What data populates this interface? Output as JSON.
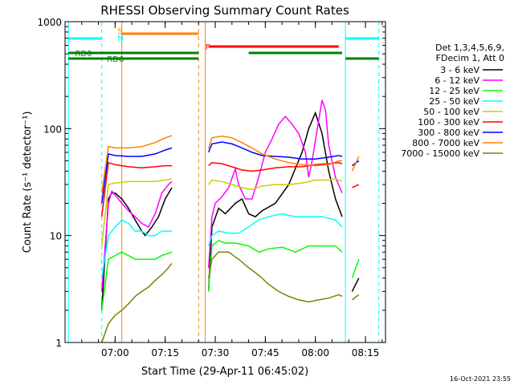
{
  "chart_data": {
    "type": "line",
    "title": "RHESSI Observing Summary Count Rates",
    "xlabel": "Start Time (29-Apr-11 06:45:02)",
    "ylabel": "Count Rate (s⁻¹ detector⁻¹)",
    "y_scale": "log",
    "ylim": [
      1,
      1000
    ],
    "xlim": [
      "06:45",
      "08:21"
    ],
    "x_ticks": [
      "07:00",
      "07:15",
      "07:30",
      "07:45",
      "08:00",
      "08:15"
    ],
    "y_ticks": [
      "1",
      "10",
      "100",
      "1000"
    ],
    "footer_date": "16-Oct-2021 23:55",
    "legend_header": [
      "Det 1,3,4,5,6,9,",
      "FDecim 1, Att 0"
    ],
    "flag_labels": {
      "saa": "S",
      "night": "N",
      "flare": "F",
      "rd0": "RD0",
      "rd6": "RD6"
    },
    "series": [
      {
        "name": "3 - 6 keV",
        "color": "#000000",
        "points": [
          [
            "06:55",
            null
          ],
          [
            "06:56",
            2
          ],
          [
            "06:58",
            22
          ],
          [
            "06:59",
            25
          ],
          [
            "07:00",
            25
          ],
          [
            "07:02",
            22
          ],
          [
            "07:04",
            18
          ],
          [
            "07:06",
            14
          ],
          [
            "07:08",
            11
          ],
          [
            "07:09",
            10
          ],
          [
            "07:11",
            12
          ],
          [
            "07:13",
            15
          ],
          [
            "07:15",
            22
          ],
          [
            "07:17",
            28
          ],
          [
            "07:18",
            null
          ],
          [
            "07:28",
            3
          ],
          [
            "07:29",
            12
          ],
          [
            "07:31",
            18
          ],
          [
            "07:33",
            16
          ],
          [
            "07:36",
            20
          ],
          [
            "07:38",
            22
          ],
          [
            "07:40",
            16
          ],
          [
            "07:42",
            15
          ],
          [
            "07:44",
            17
          ],
          [
            "07:48",
            20
          ],
          [
            "07:52",
            30
          ],
          [
            "07:56",
            60
          ],
          [
            "07:58",
            100
          ],
          [
            "08:00",
            140
          ],
          [
            "08:02",
            90
          ],
          [
            "08:04",
            40
          ],
          [
            "08:06",
            22
          ],
          [
            "08:08",
            15
          ],
          [
            "08:10",
            null
          ],
          [
            "08:11",
            3
          ],
          [
            "08:13",
            4
          ]
        ]
      },
      {
        "name": "6 - 12 keV",
        "color": "#ff00ff",
        "points": [
          [
            "06:55",
            null
          ],
          [
            "06:56",
            3
          ],
          [
            "06:58",
            20
          ],
          [
            "06:59",
            26
          ],
          [
            "07:00",
            24
          ],
          [
            "07:02",
            20
          ],
          [
            "07:04",
            17
          ],
          [
            "07:06",
            15
          ],
          [
            "07:08",
            13
          ],
          [
            "07:10",
            12
          ],
          [
            "07:12",
            16
          ],
          [
            "07:14",
            25
          ],
          [
            "07:16",
            30
          ],
          [
            "07:17",
            32
          ],
          [
            "07:18",
            null
          ],
          [
            "07:28",
            5
          ],
          [
            "07:29",
            15
          ],
          [
            "07:30",
            20
          ],
          [
            "07:32",
            23
          ],
          [
            "07:34",
            28
          ],
          [
            "07:36",
            42
          ],
          [
            "07:37",
            30
          ],
          [
            "07:39",
            22
          ],
          [
            "07:41",
            22
          ],
          [
            "07:43",
            35
          ],
          [
            "07:45",
            60
          ],
          [
            "07:47",
            80
          ],
          [
            "07:49",
            110
          ],
          [
            "07:51",
            130
          ],
          [
            "07:53",
            110
          ],
          [
            "07:55",
            90
          ],
          [
            "07:57",
            60
          ],
          [
            "07:58",
            35
          ],
          [
            "07:59",
            50
          ],
          [
            "08:01",
            120
          ],
          [
            "08:02",
            185
          ],
          [
            "08:03",
            150
          ],
          [
            "08:04",
            70
          ],
          [
            "08:06",
            35
          ],
          [
            "08:08",
            25
          ],
          [
            "08:10",
            null
          ]
        ]
      },
      {
        "name": "12 - 25 keV",
        "color": "#00ff00",
        "points": [
          [
            "06:55",
            null
          ],
          [
            "06:56",
            2
          ],
          [
            "06:58",
            6
          ],
          [
            "07:00",
            6.5
          ],
          [
            "07:02",
            7
          ],
          [
            "07:04",
            6.5
          ],
          [
            "07:06",
            6
          ],
          [
            "07:08",
            6
          ],
          [
            "07:10",
            6
          ],
          [
            "07:12",
            6
          ],
          [
            "07:14",
            6.5
          ],
          [
            "07:17",
            7
          ],
          [
            "07:18",
            null
          ],
          [
            "07:28",
            3
          ],
          [
            "07:29",
            8
          ],
          [
            "07:31",
            9
          ],
          [
            "07:33",
            8.5
          ],
          [
            "07:36",
            8.5
          ],
          [
            "07:40",
            8
          ],
          [
            "07:43",
            7
          ],
          [
            "07:46",
            7.5
          ],
          [
            "07:50",
            7.8
          ],
          [
            "07:54",
            7
          ],
          [
            "07:58",
            8
          ],
          [
            "08:02",
            8
          ],
          [
            "08:06",
            8
          ],
          [
            "08:08",
            7
          ],
          [
            "08:10",
            null
          ],
          [
            "08:11",
            4
          ],
          [
            "08:13",
            6
          ]
        ]
      },
      {
        "name": "25 - 50 keV",
        "color": "#00ffff",
        "points": [
          [
            "06:55",
            null
          ],
          [
            "06:56",
            4
          ],
          [
            "06:58",
            10
          ],
          [
            "07:00",
            12
          ],
          [
            "07:02",
            14
          ],
          [
            "07:04",
            13
          ],
          [
            "07:06",
            11
          ],
          [
            "07:08",
            11
          ],
          [
            "07:10",
            10
          ],
          [
            "07:12",
            10
          ],
          [
            "07:14",
            11
          ],
          [
            "07:17",
            11
          ],
          [
            "07:18",
            null
          ],
          [
            "07:28",
            8
          ],
          [
            "07:29",
            10
          ],
          [
            "07:31",
            11
          ],
          [
            "07:34",
            10.5
          ],
          [
            "07:37",
            10.5
          ],
          [
            "07:40",
            12
          ],
          [
            "07:43",
            14
          ],
          [
            "07:46",
            15
          ],
          [
            "07:50",
            16
          ],
          [
            "07:54",
            15
          ],
          [
            "07:58",
            15
          ],
          [
            "08:02",
            15
          ],
          [
            "08:06",
            14
          ],
          [
            "08:08",
            12
          ],
          [
            "08:10",
            null
          ]
        ]
      },
      {
        "name": "50 - 100 keV",
        "color": "#cccc00",
        "points": [
          [
            "06:55",
            null
          ],
          [
            "06:56",
            8
          ],
          [
            "06:58",
            30
          ],
          [
            "07:00",
            31
          ],
          [
            "07:04",
            32
          ],
          [
            "07:08",
            32
          ],
          [
            "07:12",
            32
          ],
          [
            "07:15",
            33
          ],
          [
            "07:17",
            34
          ],
          [
            "07:18",
            null
          ],
          [
            "07:28",
            30
          ],
          [
            "07:29",
            33
          ],
          [
            "07:32",
            32
          ],
          [
            "07:35",
            30
          ],
          [
            "07:38",
            28
          ],
          [
            "07:41",
            27
          ],
          [
            "07:44",
            29
          ],
          [
            "07:48",
            30
          ],
          [
            "07:52",
            30
          ],
          [
            "07:56",
            31
          ],
          [
            "08:00",
            33
          ],
          [
            "08:04",
            33
          ],
          [
            "08:06",
            34
          ],
          [
            "08:08",
            32
          ],
          [
            "08:10",
            null
          ]
        ]
      },
      {
        "name": "100 - 300 keV",
        "color": "#ff0000",
        "points": [
          [
            "06:55",
            null
          ],
          [
            "06:56",
            15
          ],
          [
            "06:58",
            48
          ],
          [
            "07:00",
            46
          ],
          [
            "07:04",
            44
          ],
          [
            "07:08",
            43
          ],
          [
            "07:12",
            44
          ],
          [
            "07:15",
            45
          ],
          [
            "07:17",
            45
          ],
          [
            "07:18",
            null
          ],
          [
            "07:28",
            45
          ],
          [
            "07:29",
            48
          ],
          [
            "07:32",
            47
          ],
          [
            "07:35",
            44
          ],
          [
            "07:38",
            41
          ],
          [
            "07:41",
            40
          ],
          [
            "07:44",
            41
          ],
          [
            "07:48",
            43
          ],
          [
            "07:52",
            44
          ],
          [
            "07:56",
            44
          ],
          [
            "08:00",
            46
          ],
          [
            "08:04",
            47
          ],
          [
            "08:07",
            48
          ],
          [
            "08:08",
            47
          ],
          [
            "08:10",
            null
          ],
          [
            "08:11",
            28
          ],
          [
            "08:13",
            30
          ]
        ]
      },
      {
        "name": "300 - 800 keV",
        "color": "#0000ff",
        "points": [
          [
            "06:55",
            null
          ],
          [
            "06:56",
            20
          ],
          [
            "06:58",
            58
          ],
          [
            "07:00",
            56
          ],
          [
            "07:04",
            55
          ],
          [
            "07:08",
            55
          ],
          [
            "07:12",
            58
          ],
          [
            "07:15",
            63
          ],
          [
            "07:17",
            66
          ],
          [
            "07:18",
            null
          ],
          [
            "07:28",
            60
          ],
          [
            "07:29",
            72
          ],
          [
            "07:32",
            75
          ],
          [
            "07:35",
            72
          ],
          [
            "07:38",
            66
          ],
          [
            "07:41",
            60
          ],
          [
            "07:44",
            56
          ],
          [
            "07:48",
            55
          ],
          [
            "07:52",
            54
          ],
          [
            "07:56",
            52
          ],
          [
            "08:00",
            52
          ],
          [
            "08:04",
            54
          ],
          [
            "08:07",
            56
          ],
          [
            "08:08",
            55
          ],
          [
            "08:10",
            null
          ],
          [
            "08:11",
            45
          ],
          [
            "08:13",
            50
          ]
        ]
      },
      {
        "name": "800 - 7000 keV",
        "color": "#ff8000",
        "points": [
          [
            "06:55",
            null
          ],
          [
            "06:56",
            25
          ],
          [
            "06:58",
            68
          ],
          [
            "07:00",
            66
          ],
          [
            "07:04",
            66
          ],
          [
            "07:08",
            68
          ],
          [
            "07:12",
            74
          ],
          [
            "07:15",
            82
          ],
          [
            "07:17",
            86
          ],
          [
            "07:18",
            null
          ],
          [
            "07:28",
            65
          ],
          [
            "07:29",
            82
          ],
          [
            "07:32",
            85
          ],
          [
            "07:35",
            82
          ],
          [
            "07:38",
            74
          ],
          [
            "07:41",
            66
          ],
          [
            "07:44",
            58
          ],
          [
            "07:48",
            52
          ],
          [
            "07:52",
            48
          ],
          [
            "07:56",
            46
          ],
          [
            "08:00",
            45
          ],
          [
            "08:04",
            46
          ],
          [
            "08:07",
            50
          ],
          [
            "08:08",
            50
          ],
          [
            "08:10",
            null
          ],
          [
            "08:11",
            40
          ],
          [
            "08:13",
            55
          ]
        ]
      },
      {
        "name": "7000 - 15000 keV",
        "color": "#808000",
        "points": [
          [
            "06:55",
            null
          ],
          [
            "06:56",
            1
          ],
          [
            "06:58",
            1.5
          ],
          [
            "07:00",
            1.8
          ],
          [
            "07:02",
            2
          ],
          [
            "07:04",
            2.3
          ],
          [
            "07:06",
            2.7
          ],
          [
            "07:08",
            3
          ],
          [
            "07:10",
            3.3
          ],
          [
            "07:12",
            3.8
          ],
          [
            "07:14",
            4.3
          ],
          [
            "07:16",
            5
          ],
          [
            "07:17",
            5.5
          ],
          [
            "07:18",
            null
          ],
          [
            "07:28",
            4
          ],
          [
            "07:29",
            6
          ],
          [
            "07:31",
            7
          ],
          [
            "07:34",
            7
          ],
          [
            "07:37",
            6
          ],
          [
            "07:40",
            5
          ],
          [
            "07:42",
            4.5
          ],
          [
            "07:44",
            4
          ],
          [
            "07:46",
            3.5
          ],
          [
            "07:49",
            3
          ],
          [
            "07:52",
            2.7
          ],
          [
            "07:55",
            2.5
          ],
          [
            "07:58",
            2.4
          ],
          [
            "08:01",
            2.5
          ],
          [
            "08:04",
            2.6
          ],
          [
            "08:07",
            2.8
          ],
          [
            "08:08",
            2.7
          ],
          [
            "08:10",
            null
          ],
          [
            "08:11",
            2.5
          ],
          [
            "08:13",
            2.8
          ]
        ]
      }
    ]
  }
}
